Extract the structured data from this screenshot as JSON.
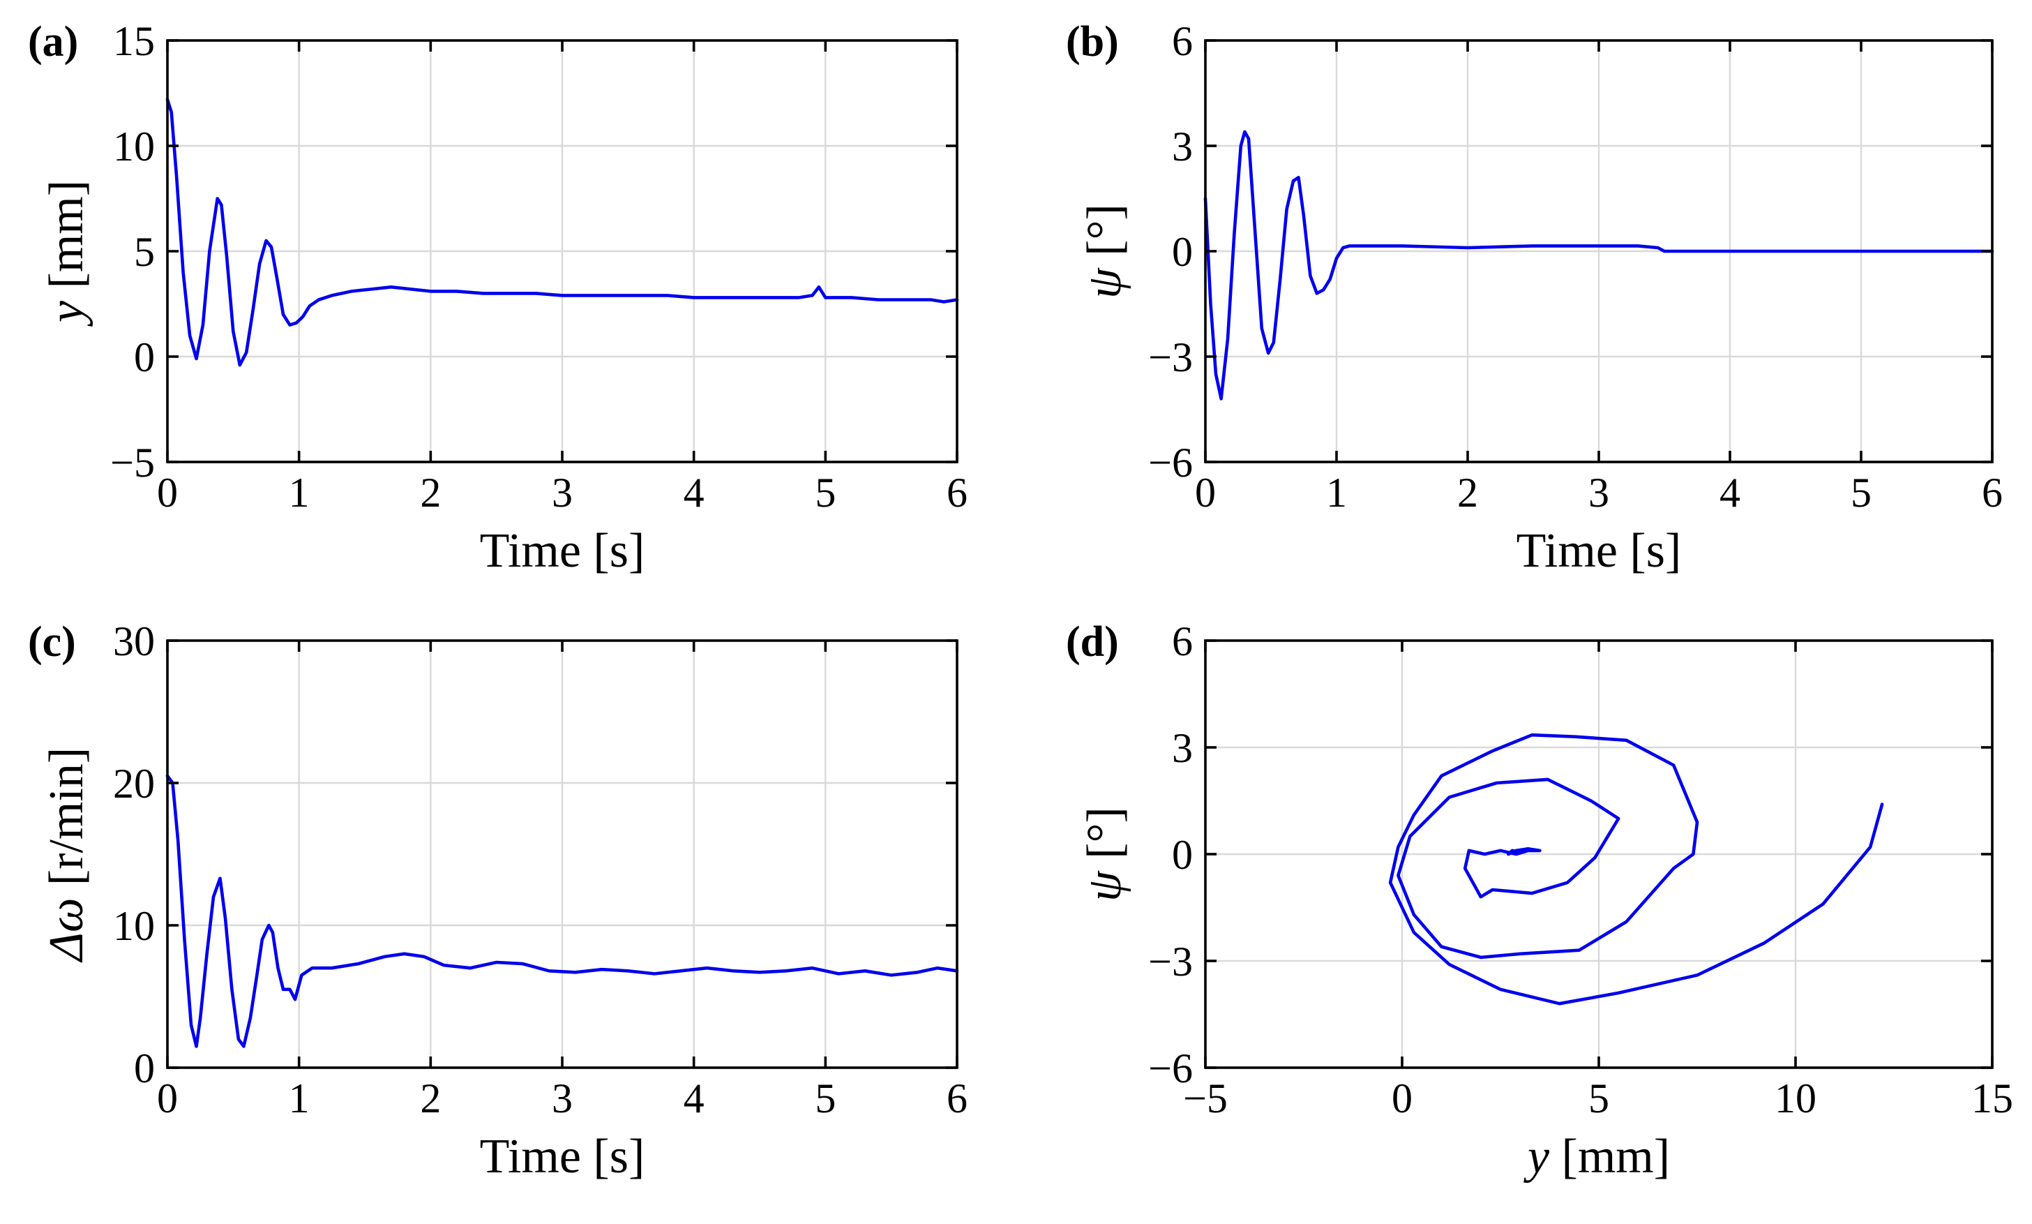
{
  "chart_data": [
    {
      "type": "line",
      "panel_label": "(a)",
      "xlabel": "Time [s]",
      "ylabel": "y [mm]",
      "ylabel_italic": "y",
      "ylabel_rest": " [mm]",
      "xlim": [
        0,
        6
      ],
      "ylim": [
        -5,
        15
      ],
      "xticks": [
        0,
        1,
        2,
        3,
        4,
        5,
        6
      ],
      "yticks": [
        -5,
        0,
        5,
        10,
        15
      ],
      "xtick_labels": [
        "0",
        "1",
        "2",
        "3",
        "4",
        "5",
        "6"
      ],
      "ytick_labels": [
        "−5",
        "0",
        "5",
        "10",
        "15"
      ],
      "grid": true,
      "color": "#0000ee",
      "series": [
        {
          "name": "y",
          "x": [
            0,
            0.03,
            0.07,
            0.12,
            0.17,
            0.22,
            0.27,
            0.32,
            0.38,
            0.41,
            0.45,
            0.5,
            0.55,
            0.6,
            0.65,
            0.7,
            0.75,
            0.79,
            0.83,
            0.88,
            0.93,
            0.98,
            1.03,
            1.08,
            1.15,
            1.25,
            1.4,
            1.55,
            1.7,
            1.85,
            2.0,
            2.2,
            2.4,
            2.6,
            2.8,
            3.0,
            3.2,
            3.4,
            3.6,
            3.8,
            4.0,
            4.2,
            4.4,
            4.6,
            4.8,
            4.9,
            4.95,
            5.0,
            5.2,
            5.4,
            5.6,
            5.8,
            5.9,
            6.0
          ],
          "y": [
            12.2,
            11.6,
            8.5,
            4.0,
            1.0,
            -0.1,
            1.5,
            5.0,
            7.5,
            7.2,
            4.8,
            1.2,
            -0.4,
            0.2,
            2.2,
            4.4,
            5.5,
            5.2,
            3.8,
            2.0,
            1.5,
            1.6,
            1.9,
            2.4,
            2.7,
            2.9,
            3.1,
            3.2,
            3.3,
            3.2,
            3.1,
            3.1,
            3.0,
            3.0,
            3.0,
            2.9,
            2.9,
            2.9,
            2.9,
            2.9,
            2.8,
            2.8,
            2.8,
            2.8,
            2.8,
            2.9,
            3.3,
            2.8,
            2.8,
            2.7,
            2.7,
            2.7,
            2.6,
            2.7
          ]
        }
      ]
    },
    {
      "type": "line",
      "panel_label": "(b)",
      "xlabel": "Time [s]",
      "ylabel": "ψ [°]",
      "ylabel_italic": "ψ",
      "ylabel_rest": " [°]",
      "xlim": [
        0,
        6
      ],
      "ylim": [
        -6,
        6
      ],
      "xticks": [
        0,
        1,
        2,
        3,
        4,
        5,
        6
      ],
      "yticks": [
        -6,
        -3,
        0,
        3,
        6
      ],
      "xtick_labels": [
        "0",
        "1",
        "2",
        "3",
        "4",
        "5",
        "6"
      ],
      "ytick_labels": [
        "−6",
        "−3",
        "0",
        "3",
        "6"
      ],
      "grid": true,
      "color": "#0000ee",
      "series": [
        {
          "name": "psi",
          "x": [
            0,
            0.04,
            0.08,
            0.12,
            0.17,
            0.22,
            0.27,
            0.3,
            0.33,
            0.38,
            0.43,
            0.48,
            0.52,
            0.57,
            0.62,
            0.67,
            0.71,
            0.75,
            0.8,
            0.85,
            0.9,
            0.95,
            1.0,
            1.05,
            1.1,
            1.5,
            2.0,
            2.5,
            3.0,
            3.3,
            3.45,
            3.5,
            4.0,
            4.5,
            5.0,
            5.5,
            6.0
          ],
          "y": [
            1.5,
            -1.5,
            -3.5,
            -4.2,
            -2.5,
            0.5,
            3.0,
            3.4,
            3.2,
            0.5,
            -2.2,
            -2.9,
            -2.6,
            -0.8,
            1.2,
            2.0,
            2.1,
            1.0,
            -0.7,
            -1.2,
            -1.1,
            -0.8,
            -0.2,
            0.1,
            0.15,
            0.15,
            0.1,
            0.15,
            0.15,
            0.15,
            0.1,
            0.0,
            0.0,
            0.0,
            0.0,
            0.0,
            0.0
          ]
        }
      ]
    },
    {
      "type": "line",
      "panel_label": "(c)",
      "xlabel": "Time [s]",
      "ylabel": "Δω [r/min]",
      "ylabel_italic": "Δω",
      "ylabel_rest": " [r/min]",
      "xlim": [
        0,
        6
      ],
      "ylim": [
        0,
        30
      ],
      "xticks": [
        0,
        1,
        2,
        3,
        4,
        5,
        6
      ],
      "yticks": [
        0,
        10,
        20,
        30
      ],
      "xtick_labels": [
        "0",
        "1",
        "2",
        "3",
        "4",
        "5",
        "6"
      ],
      "ytick_labels": [
        "0",
        "10",
        "20",
        "30"
      ],
      "grid": true,
      "color": "#0000ee",
      "series": [
        {
          "name": "delta_omega",
          "x": [
            0,
            0.04,
            0.08,
            0.13,
            0.18,
            0.22,
            0.25,
            0.3,
            0.35,
            0.4,
            0.44,
            0.49,
            0.54,
            0.58,
            0.63,
            0.68,
            0.72,
            0.77,
            0.8,
            0.84,
            0.88,
            0.93,
            0.97,
            1.02,
            1.1,
            1.25,
            1.45,
            1.65,
            1.8,
            1.95,
            2.1,
            2.3,
            2.5,
            2.7,
            2.9,
            3.1,
            3.3,
            3.5,
            3.7,
            3.9,
            4.1,
            4.3,
            4.5,
            4.7,
            4.9,
            5.1,
            5.3,
            5.5,
            5.7,
            5.85,
            6.0
          ],
          "y": [
            20.5,
            20.0,
            16.0,
            9.0,
            3.0,
            1.5,
            3.5,
            8.0,
            12.0,
            13.3,
            10.5,
            5.5,
            2.0,
            1.5,
            3.5,
            6.5,
            9.0,
            10.0,
            9.5,
            7.0,
            5.5,
            5.5,
            4.8,
            6.5,
            7.0,
            7.0,
            7.3,
            7.8,
            8.0,
            7.8,
            7.2,
            7.0,
            7.4,
            7.3,
            6.8,
            6.7,
            6.9,
            6.8,
            6.6,
            6.8,
            7.0,
            6.8,
            6.7,
            6.8,
            7.0,
            6.6,
            6.8,
            6.5,
            6.7,
            7.0,
            6.8
          ]
        }
      ]
    },
    {
      "type": "line",
      "panel_label": "(d)",
      "xlabel": "y [mm]",
      "xlabel_italic": "y",
      "xlabel_rest": " [mm]",
      "ylabel": "ψ [°]",
      "ylabel_italic": "ψ",
      "ylabel_rest": " [°]",
      "xlim": [
        -5,
        15
      ],
      "ylim": [
        -6,
        6
      ],
      "xticks": [
        -5,
        0,
        5,
        10,
        15
      ],
      "yticks": [
        -6,
        -3,
        0,
        3,
        6
      ],
      "xtick_labels": [
        "−5",
        "0",
        "5",
        "10",
        "15"
      ],
      "ytick_labels": [
        "−6",
        "−3",
        "0",
        "3",
        "6"
      ],
      "grid": true,
      "color": "#0000ee",
      "series": [
        {
          "name": "phase_trajectory",
          "x": [
            12.2,
            11.9,
            10.7,
            9.2,
            7.5,
            5.5,
            4.0,
            2.5,
            1.2,
            0.3,
            -0.3,
            -0.1,
            0.3,
            1.0,
            2.3,
            3.3,
            4.4,
            5.7,
            6.9,
            7.5,
            7.4,
            6.9,
            5.7,
            4.5,
            3.0,
            2.0,
            1.0,
            0.3,
            -0.1,
            0.2,
            1.2,
            2.4,
            3.7,
            4.8,
            5.5,
            4.9,
            4.2,
            3.3,
            2.3,
            2.0,
            1.6,
            1.7,
            2.1,
            2.5,
            2.9,
            3.2,
            3.5,
            3.2,
            2.9,
            2.7,
            2.8,
            3.0,
            2.8
          ],
          "y": [
            1.4,
            0.2,
            -1.4,
            -2.5,
            -3.4,
            -3.9,
            -4.2,
            -3.8,
            -3.1,
            -2.2,
            -0.8,
            0.2,
            1.1,
            2.2,
            2.9,
            3.35,
            3.3,
            3.2,
            2.5,
            0.9,
            0.0,
            -0.4,
            -1.9,
            -2.7,
            -2.8,
            -2.9,
            -2.6,
            -1.7,
            -0.6,
            0.5,
            1.6,
            2.0,
            2.1,
            1.5,
            1.0,
            -0.1,
            -0.8,
            -1.1,
            -1.0,
            -1.2,
            -0.4,
            0.1,
            0.0,
            0.1,
            0.0,
            0.1,
            0.1,
            0.15,
            0.1,
            0.0,
            0.1,
            0.05,
            0.1
          ]
        }
      ]
    }
  ]
}
